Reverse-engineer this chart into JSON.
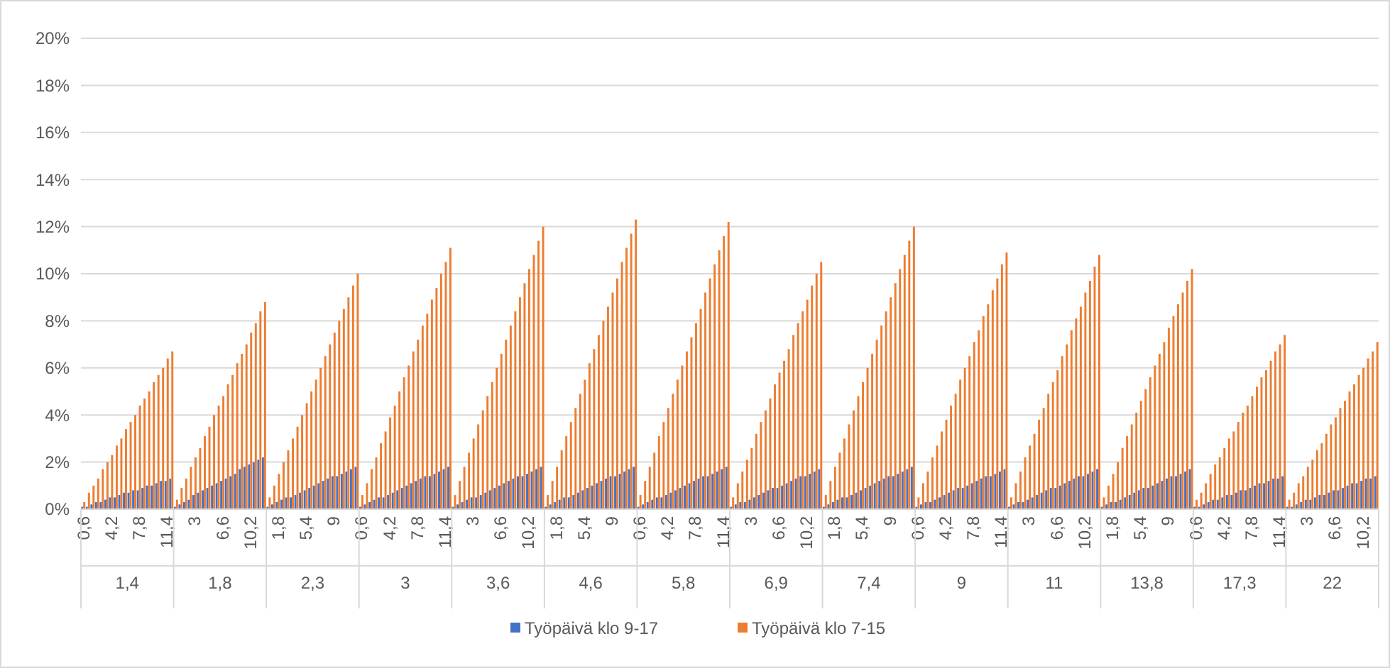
{
  "chart_data": {
    "type": "bar",
    "categories": [
      "0,6",
      null,
      null,
      null,
      null,
      null,
      "4,2",
      null,
      null,
      null,
      null,
      null,
      "7,8",
      null,
      null,
      null,
      null,
      null,
      "11,4",
      null,
      null,
      null,
      null,
      null,
      "3",
      null,
      null,
      null,
      null,
      null,
      "6,6",
      null,
      null,
      null,
      null,
      null,
      "10,2",
      null,
      null,
      null,
      null,
      null,
      "1,8",
      null,
      null,
      null,
      null,
      null,
      "5,4",
      null,
      null,
      null,
      null,
      null,
      "9",
      null,
      null,
      null,
      null,
      null,
      "0,6",
      null,
      null,
      null,
      null,
      null,
      "4,2",
      null,
      null,
      null,
      null,
      null,
      "7,8",
      null,
      null,
      null,
      null,
      null,
      "11,4",
      null,
      null,
      null,
      null,
      null,
      "3",
      null,
      null,
      null,
      null,
      null,
      "6,6",
      null,
      null,
      null,
      null,
      null,
      "10,2",
      null,
      null,
      null,
      null,
      null,
      "1,8",
      null,
      null,
      null,
      null,
      null,
      "5,4",
      null,
      null,
      null,
      null,
      null,
      "9",
      null,
      null,
      null,
      null,
      null,
      "0,6",
      null,
      null,
      null,
      null,
      null,
      "4,2",
      null,
      null,
      null,
      null,
      null,
      "7,8",
      null,
      null,
      null,
      null,
      null,
      "11,4",
      null,
      null,
      null,
      null,
      null,
      "3",
      null,
      null,
      null,
      null,
      null,
      "6,6",
      null,
      null,
      null,
      null,
      null,
      "10,2",
      null,
      null,
      null,
      null,
      null,
      "1,8",
      null,
      null,
      null,
      null,
      null,
      "5,4",
      null,
      null,
      null,
      null,
      null,
      "9",
      null,
      null,
      null,
      null,
      null,
      "0,6",
      null,
      null,
      null,
      null,
      null,
      "4,2",
      null,
      null,
      null,
      null,
      null,
      "7,8",
      null,
      null,
      null,
      null,
      null,
      "11,4",
      null,
      null,
      null,
      null,
      null,
      "3",
      null,
      null,
      null,
      null,
      null,
      "6,6",
      null,
      null,
      null,
      null,
      null,
      "10,2",
      null,
      null,
      null,
      null,
      null,
      "1,8",
      null,
      null,
      null,
      null,
      null,
      "5,4",
      null,
      null,
      null,
      null,
      null,
      "9",
      null,
      null,
      null,
      null,
      null,
      "0,6",
      null,
      null,
      null,
      null,
      null,
      "4,2",
      null,
      null,
      null,
      null,
      null,
      "7,8",
      null,
      null,
      null,
      null,
      null,
      "11,4",
      null,
      null,
      null,
      null,
      null,
      "3",
      null,
      null,
      null,
      null,
      null,
      "6,6",
      null,
      null,
      null,
      null,
      null,
      "10,2",
      null,
      null,
      null
    ],
    "annotations": [
      "1,4",
      "1,8",
      "2,3",
      "3",
      "3,6",
      "4,6",
      "5,8",
      "6,9",
      "7,4",
      "9",
      "11",
      "13,8",
      "17,3",
      "22"
    ],
    "series": [
      {
        "name": "Työpäivä klo 9-17",
        "color": "#4472c4",
        "values": [
          0.1,
          0.1,
          0.2,
          0.3,
          0.3,
          0.4,
          0.5,
          0.5,
          0.6,
          0.7,
          0.7,
          0.8,
          0.8,
          0.9,
          1.0,
          1.0,
          1.1,
          1.2,
          1.2,
          1.3,
          0.1,
          0.2,
          0.3,
          0.4,
          0.6,
          0.7,
          0.8,
          0.9,
          1.0,
          1.1,
          1.2,
          1.3,
          1.4,
          1.5,
          1.7,
          1.8,
          1.9,
          2.0,
          2.1,
          2.2,
          0.1,
          0.2,
          0.3,
          0.4,
          0.5,
          0.5,
          0.6,
          0.7,
          0.8,
          0.9,
          1.0,
          1.1,
          1.2,
          1.3,
          1.4,
          1.4,
          1.5,
          1.6,
          1.7,
          1.8,
          0.1,
          0.2,
          0.3,
          0.4,
          0.5,
          0.5,
          0.6,
          0.7,
          0.8,
          0.9,
          1.0,
          1.1,
          1.2,
          1.3,
          1.4,
          1.4,
          1.5,
          1.6,
          1.7,
          1.8,
          0.1,
          0.2,
          0.3,
          0.4,
          0.5,
          0.5,
          0.6,
          0.7,
          0.8,
          0.9,
          1.0,
          1.1,
          1.2,
          1.3,
          1.4,
          1.4,
          1.5,
          1.6,
          1.7,
          1.8,
          0.1,
          0.2,
          0.3,
          0.4,
          0.5,
          0.5,
          0.6,
          0.7,
          0.8,
          0.9,
          1.0,
          1.1,
          1.2,
          1.3,
          1.4,
          1.4,
          1.5,
          1.6,
          1.7,
          1.8,
          0.1,
          0.2,
          0.3,
          0.4,
          0.5,
          0.5,
          0.6,
          0.7,
          0.8,
          0.9,
          1.0,
          1.1,
          1.2,
          1.3,
          1.4,
          1.4,
          1.5,
          1.6,
          1.7,
          1.8,
          0.1,
          0.2,
          0.3,
          0.3,
          0.4,
          0.5,
          0.6,
          0.7,
          0.8,
          0.9,
          0.9,
          1.0,
          1.1,
          1.2,
          1.3,
          1.4,
          1.4,
          1.5,
          1.6,
          1.7,
          0.1,
          0.2,
          0.3,
          0.4,
          0.5,
          0.5,
          0.6,
          0.7,
          0.8,
          0.9,
          1.0,
          1.1,
          1.2,
          1.3,
          1.4,
          1.4,
          1.5,
          1.6,
          1.7,
          1.8,
          0.1,
          0.2,
          0.3,
          0.3,
          0.4,
          0.5,
          0.6,
          0.7,
          0.8,
          0.9,
          0.9,
          1.0,
          1.1,
          1.2,
          1.3,
          1.4,
          1.4,
          1.5,
          1.6,
          1.7,
          0.1,
          0.2,
          0.3,
          0.3,
          0.4,
          0.5,
          0.6,
          0.7,
          0.8,
          0.9,
          0.9,
          1.0,
          1.1,
          1.2,
          1.3,
          1.4,
          1.4,
          1.5,
          1.6,
          1.7,
          0.1,
          0.2,
          0.3,
          0.3,
          0.4,
          0.5,
          0.6,
          0.7,
          0.8,
          0.9,
          0.9,
          1.0,
          1.1,
          1.2,
          1.3,
          1.4,
          1.4,
          1.5,
          1.6,
          1.7,
          0.1,
          0.1,
          0.2,
          0.3,
          0.4,
          0.4,
          0.5,
          0.6,
          0.6,
          0.7,
          0.8,
          0.8,
          0.9,
          1.0,
          1.1,
          1.1,
          1.2,
          1.3,
          1.3,
          1.4,
          0.1,
          0.1,
          0.2,
          0.3,
          0.4,
          0.4,
          0.5,
          0.6,
          0.6,
          0.7,
          0.8,
          0.8,
          0.9,
          1.0,
          1.1,
          1.1,
          1.2,
          1.3,
          1.3,
          1.4
        ]
      },
      {
        "name": "Työpäivä klo 7-15",
        "color": "#ed7d31",
        "values": [
          0.3,
          0.7,
          1.0,
          1.3,
          1.7,
          2.0,
          2.3,
          2.7,
          3.0,
          3.4,
          3.7,
          4.0,
          4.4,
          4.7,
          5.0,
          5.4,
          5.7,
          6.0,
          6.4,
          6.7,
          0.4,
          0.9,
          1.3,
          1.8,
          2.2,
          2.6,
          3.1,
          3.5,
          4.0,
          4.4,
          4.8,
          5.3,
          5.7,
          6.2,
          6.6,
          7.0,
          7.5,
          7.9,
          8.4,
          8.8,
          0.5,
          1.0,
          1.5,
          2.0,
          2.5,
          3.0,
          3.5,
          4.0,
          4.5,
          5.0,
          5.5,
          6.0,
          6.5,
          7.0,
          7.5,
          8.0,
          8.5,
          9.0,
          9.5,
          10.0,
          0.6,
          1.1,
          1.7,
          2.2,
          2.8,
          3.3,
          3.9,
          4.4,
          5.0,
          5.6,
          6.1,
          6.7,
          7.2,
          7.8,
          8.3,
          8.9,
          9.4,
          10.0,
          10.5,
          11.1,
          0.6,
          1.2,
          1.8,
          2.4,
          3.0,
          3.6,
          4.2,
          4.8,
          5.4,
          6.0,
          6.6,
          7.2,
          7.8,
          8.4,
          9.0,
          9.6,
          10.2,
          10.8,
          11.4,
          12.0,
          0.6,
          1.2,
          1.8,
          2.5,
          3.1,
          3.7,
          4.3,
          4.9,
          5.5,
          6.2,
          6.8,
          7.4,
          8.0,
          8.6,
          9.2,
          9.8,
          10.5,
          11.1,
          11.7,
          12.3,
          0.6,
          1.2,
          1.8,
          2.4,
          3.1,
          3.7,
          4.3,
          4.9,
          5.5,
          6.1,
          6.7,
          7.3,
          7.9,
          8.5,
          9.2,
          9.8,
          10.4,
          11.0,
          11.6,
          12.2,
          0.5,
          1.1,
          1.6,
          2.1,
          2.6,
          3.2,
          3.7,
          4.2,
          4.7,
          5.3,
          5.8,
          6.3,
          6.8,
          7.4,
          7.9,
          8.4,
          8.9,
          9.5,
          10.0,
          10.5,
          0.6,
          1.2,
          1.8,
          2.4,
          3.0,
          3.6,
          4.2,
          4.8,
          5.4,
          6.0,
          6.6,
          7.2,
          7.8,
          8.4,
          9.0,
          9.6,
          10.2,
          10.8,
          11.4,
          12.0,
          0.5,
          1.1,
          1.6,
          2.2,
          2.7,
          3.3,
          3.8,
          4.4,
          4.9,
          5.5,
          6.0,
          6.5,
          7.1,
          7.6,
          8.2,
          8.7,
          9.3,
          9.8,
          10.4,
          10.9,
          0.5,
          1.1,
          1.6,
          2.2,
          2.7,
          3.2,
          3.8,
          4.3,
          4.9,
          5.4,
          5.9,
          6.5,
          7.0,
          7.6,
          8.1,
          8.6,
          9.2,
          9.7,
          10.3,
          10.8,
          0.5,
          1.0,
          1.5,
          2.0,
          2.6,
          3.1,
          3.6,
          4.1,
          4.6,
          5.1,
          5.6,
          6.1,
          6.6,
          7.1,
          7.7,
          8.2,
          8.7,
          9.2,
          9.7,
          10.2,
          0.4,
          0.7,
          1.1,
          1.5,
          1.9,
          2.2,
          2.6,
          3.0,
          3.3,
          3.7,
          4.1,
          4.4,
          4.8,
          5.2,
          5.6,
          5.9,
          6.3,
          6.7,
          7.0,
          7.4,
          0.4,
          0.7,
          1.1,
          1.4,
          1.8,
          2.1,
          2.5,
          2.8,
          3.2,
          3.6,
          3.9,
          4.3,
          4.6,
          5.0,
          5.3,
          5.7,
          6.0,
          6.4,
          6.7,
          7.1
        ]
      }
    ],
    "ylim": [
      0,
      20
    ],
    "yticks": [
      {
        "value": 0,
        "label": "0%"
      },
      {
        "value": 2,
        "label": "2%"
      },
      {
        "value": 4,
        "label": "4%"
      },
      {
        "value": 6,
        "label": "6%"
      },
      {
        "value": 8,
        "label": "8%"
      },
      {
        "value": 10,
        "label": "10%"
      },
      {
        "value": 12,
        "label": "12%"
      },
      {
        "value": 14,
        "label": "14%"
      },
      {
        "value": 16,
        "label": "16%"
      },
      {
        "value": 18,
        "label": "18%"
      },
      {
        "value": 20,
        "label": "20%"
      }
    ],
    "grid": "y",
    "legend": "bottom"
  }
}
